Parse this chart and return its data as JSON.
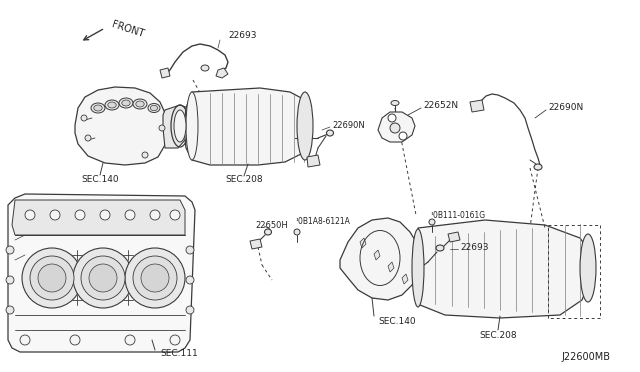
{
  "bg_color": "#ffffff",
  "fig_width": 6.4,
  "fig_height": 3.72,
  "dpi": 100,
  "labels": {
    "front": "FRONT",
    "part_22693_top": "22693",
    "part_22690N_top": "22690N",
    "sec140_top": "SEC.140",
    "sec208_top": "SEC.208",
    "part_22652N": "22652N",
    "part_22690N_right": "22690N",
    "part_0B1A8": "¹0B1A8-6121A",
    "part_22650H": "22650H",
    "part_0B111": "¹0B111-0161G",
    "part_22693_bot": "22693",
    "sec111": "SEC.111",
    "sec140_bot": "SEC.140",
    "sec208_bot": "SEC.208",
    "diagram_code": "J22600MB"
  },
  "line_color": "#3a3a3a",
  "text_color": "#222222"
}
